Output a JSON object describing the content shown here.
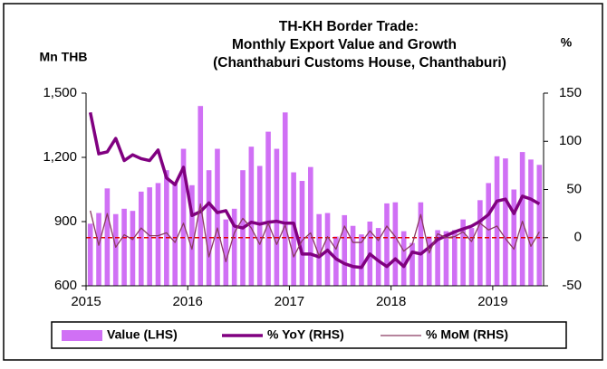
{
  "chart_data": {
    "type": "bar-line-combo",
    "title": [
      "TH-KH Border Trade:",
      "Monthly Export Value and Growth",
      "(Chanthaburi Customs House, Chanthaburi)"
    ],
    "y_label": "Mn THB",
    "y2_label": "%",
    "categories": [
      "2015",
      null,
      null,
      null,
      null,
      null,
      null,
      null,
      null,
      null,
      null,
      null,
      "2016",
      null,
      null,
      null,
      null,
      null,
      null,
      null,
      null,
      null,
      null,
      null,
      "2017",
      null,
      null,
      null,
      null,
      null,
      null,
      null,
      null,
      null,
      null,
      null,
      "2018",
      null,
      null,
      null,
      null,
      null,
      null,
      null,
      null,
      null,
      null,
      null,
      "2019",
      null,
      null,
      null,
      null,
      null
    ],
    "series": [
      {
        "name": "Value (LHS)",
        "kind": "bar",
        "axis": "y",
        "color": "#d070f5",
        "values": [
          890,
          940,
          1055,
          935,
          960,
          950,
          1040,
          1060,
          1080,
          1140,
          1080,
          1240,
          1070,
          1440,
          1140,
          1240,
          910,
          960,
          1140,
          1250,
          1160,
          1320,
          1240,
          1410,
          1130,
          1090,
          1155,
          935,
          940,
          830,
          930,
          880,
          840,
          900,
          870,
          985,
          990,
          855,
          800,
          990,
          830,
          860,
          855,
          860,
          910,
          870,
          1000,
          1080,
          1205,
          1195,
          1050,
          1225,
          1190,
          1165
        ]
      },
      {
        "name": "% YoY (RHS)",
        "kind": "line",
        "axis": "y2",
        "color": "#800080",
        "values": [
          130,
          87,
          89,
          103,
          80,
          86,
          82,
          80,
          91,
          62,
          55,
          73,
          23,
          27,
          36,
          26,
          28,
          12,
          10,
          16,
          14,
          16,
          17,
          15,
          15,
          -17,
          -17,
          -20,
          -13,
          -22,
          -27,
          -30,
          -31,
          -17,
          -24,
          -30,
          -22,
          -30,
          -15,
          -17,
          -10,
          -2,
          2,
          6,
          9,
          12,
          17,
          24,
          38,
          40,
          25,
          43,
          40,
          35
        ]
      },
      {
        "name": "% MoM (RHS)",
        "kind": "line",
        "axis": "y2",
        "color": "#8b3a62",
        "values": [
          28,
          -8,
          25,
          -10,
          3,
          -2,
          10,
          2,
          2,
          5,
          -5,
          15,
          -12,
          35,
          -20,
          10,
          -25,
          5,
          20,
          10,
          -7,
          15,
          -7,
          13,
          -20,
          -3,
          5,
          -19,
          1,
          -12,
          12,
          -5,
          -5,
          7,
          -3,
          12,
          1,
          -14,
          -7,
          24,
          -16,
          4,
          0,
          1,
          6,
          -4,
          15,
          8,
          12,
          -1,
          -12,
          17,
          -9,
          6
        ]
      }
    ],
    "ylim": [
      600,
      1500
    ],
    "yticks": [
      {
        "value": 600,
        "label": "600"
      },
      {
        "value": 900,
        "label": "900"
      },
      {
        "value": 1200,
        "label": "1,200"
      },
      {
        "value": 1500,
        "label": "1,500"
      }
    ],
    "y2lim": [
      -50,
      150
    ],
    "y2ticks": [
      -50,
      0,
      50,
      100,
      150
    ],
    "y2_reference": {
      "value": 0,
      "color": "#e00000"
    },
    "grid": false,
    "legend": "bottom"
  }
}
